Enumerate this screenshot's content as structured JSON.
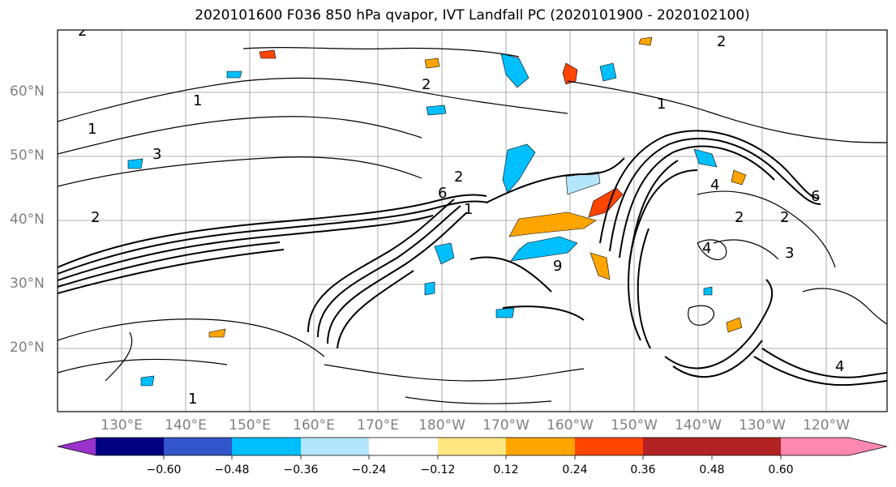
{
  "title": "2020101600 F036 850 hPa qvapor, IVT Landfall PC (2020101900 - 2020102100)",
  "lat_labels": [
    "60°N",
    "50°N",
    "40°N",
    "30°N",
    "20°N"
  ],
  "lon_labels": [
    "130°E",
    "140°E",
    "150°E",
    "160°E",
    "170°E",
    "180°W",
    "170°W",
    "160°W",
    "150°W",
    "140°W",
    "130°W",
    "120°W"
  ],
  "contour_labels": [
    "2",
    "1",
    "2",
    "1",
    "6",
    "2",
    "4",
    "2",
    "2",
    "6",
    "4",
    "2",
    "3",
    "1",
    "9",
    "1",
    "2",
    "3",
    "4",
    "1"
  ],
  "colorbar": {
    "ticks": [
      "−0.60",
      "−0.48",
      "−0.36",
      "−0.24",
      "−0.12",
      "0.12",
      "0.24",
      "0.36",
      "0.48",
      "0.60"
    ],
    "colors": [
      "#9933cc",
      "#000080",
      "#3355cc",
      "#00bfff",
      "#b3e5fc",
      "#ffffff",
      "#ffe680",
      "#ffa500",
      "#ff4500",
      "#b22222",
      "#ff88b0"
    ]
  }
}
